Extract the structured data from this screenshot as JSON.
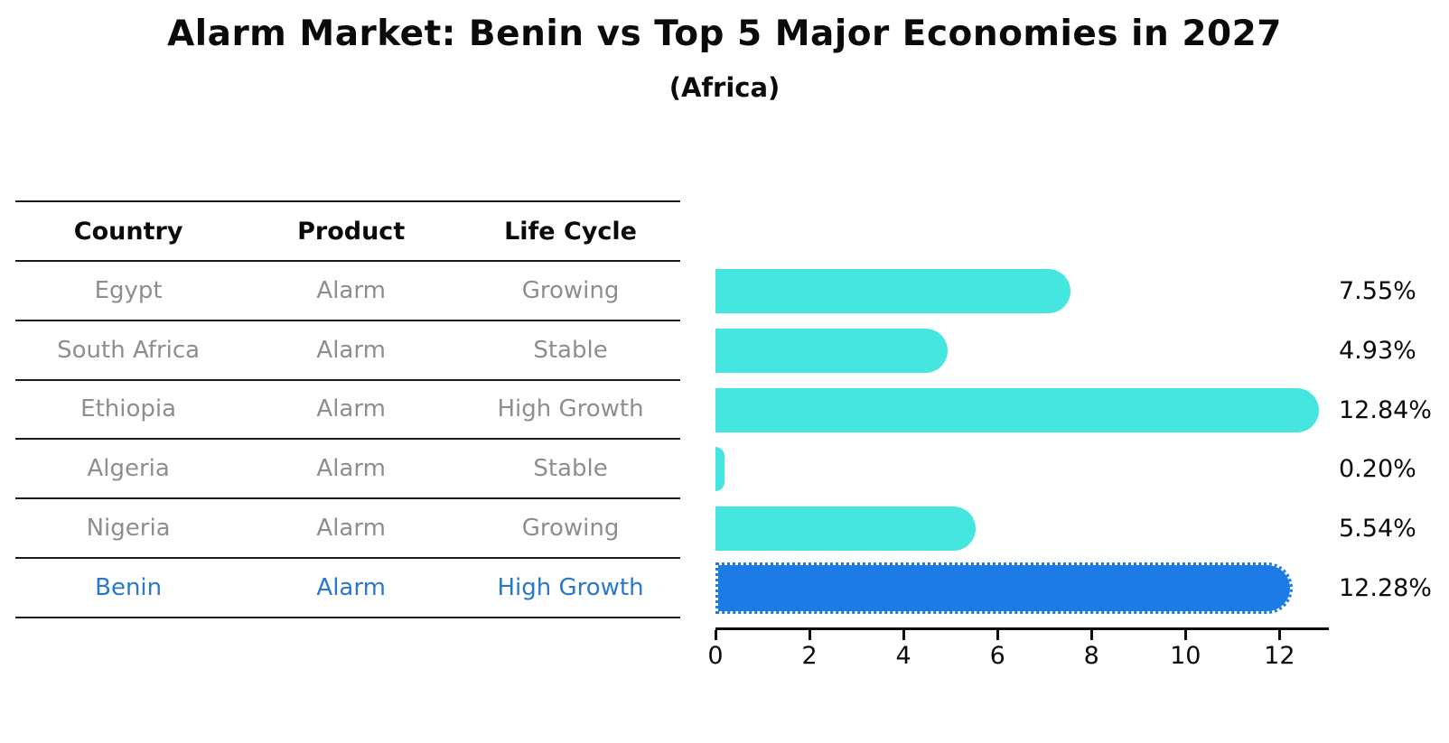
{
  "title": "Alarm Market: Benin vs Top 5 Major Economies in 2027",
  "subtitle": "(Africa)",
  "table": {
    "columns": [
      "Country",
      "Product",
      "Life Cycle"
    ],
    "rows": [
      {
        "country": "Egypt",
        "product": "Alarm",
        "life_cycle": "Growing",
        "highlight": false
      },
      {
        "country": "South Africa",
        "product": "Alarm",
        "life_cycle": "Stable",
        "highlight": false
      },
      {
        "country": "Ethiopia",
        "product": "Alarm",
        "life_cycle": "High Growth",
        "highlight": false
      },
      {
        "country": "Algeria",
        "product": "Alarm",
        "life_cycle": "Stable",
        "highlight": false
      },
      {
        "country": "Nigeria",
        "product": "Alarm",
        "life_cycle": "Growing",
        "highlight": false
      },
      {
        "country": "Benin",
        "product": "Alarm",
        "life_cycle": "High Growth",
        "highlight": true
      }
    ]
  },
  "chart_data": {
    "type": "bar",
    "orientation": "horizontal",
    "title": "Alarm Market: Benin vs Top 5 Major Economies in 2027",
    "subtitle": "(Africa)",
    "categories": [
      "Egypt",
      "South Africa",
      "Ethiopia",
      "Algeria",
      "Nigeria",
      "Benin"
    ],
    "values": [
      7.55,
      4.93,
      12.84,
      0.2,
      5.54,
      12.28
    ],
    "value_labels": [
      "7.55%",
      "4.93%",
      "12.84%",
      "0.20%",
      "5.54%",
      "12.28%"
    ],
    "xlabel": "",
    "ylabel": "",
    "xlim": [
      0,
      13.05
    ],
    "xticks": [
      0,
      2,
      4,
      6,
      8,
      10,
      12
    ],
    "grid": false,
    "legend": false,
    "bar_color": "#45e5e0",
    "highlight_color": "#1c7be4",
    "highlight_index": 5,
    "highlight_edge": "dotted"
  },
  "colors": {
    "bar_cyan": "#45e5e0",
    "bar_blue": "#1c7be4",
    "highlight_text": "#2879ce",
    "muted_text": "#8e8e8e",
    "text": "#0a0a0a"
  }
}
